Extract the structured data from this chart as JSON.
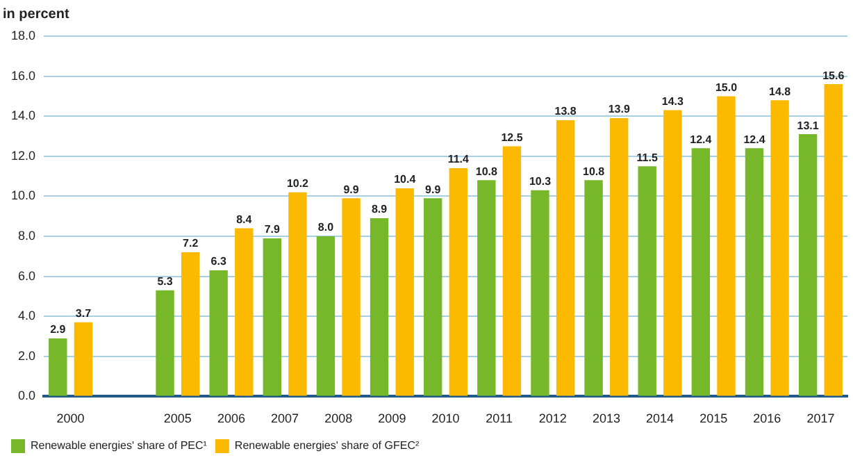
{
  "chart_data": {
    "type": "bar",
    "ylabel": "in percent",
    "categories": [
      "2000",
      null,
      "2005",
      "2006",
      "2007",
      "2008",
      "2009",
      "2010",
      "2011",
      "2012",
      "2013",
      "2014",
      "2015",
      "2016",
      "2017"
    ],
    "series": [
      {
        "name": "Renewable energies' share of PEC¹",
        "color": "#76b82a",
        "values": [
          2.9,
          null,
          5.3,
          6.3,
          7.9,
          8.0,
          8.9,
          9.9,
          10.8,
          10.3,
          10.8,
          11.5,
          12.4,
          12.4,
          13.1
        ],
        "value_labels": [
          "2.9",
          null,
          "5.3",
          "6.3",
          "7.9",
          "8.0",
          "8.9",
          "9.9",
          "10.8",
          "10.3",
          "10.8",
          "11.5",
          "12.4",
          "12.4",
          "13.1"
        ]
      },
      {
        "name": "Renewable energies' share of GFEC²",
        "color": "#fbb900",
        "values": [
          3.7,
          null,
          7.2,
          8.4,
          10.2,
          9.9,
          10.4,
          11.4,
          12.5,
          13.8,
          13.9,
          14.3,
          15.0,
          14.8,
          15.6
        ],
        "value_labels": [
          "3.7",
          null,
          "7.2",
          "8.4",
          "10.2",
          "9.9",
          "10.4",
          "11.4",
          "12.5",
          "13.8",
          "13.9",
          "14.3",
          "15.0",
          "14.8",
          "15.6"
        ]
      }
    ],
    "ylim": [
      0,
      18
    ],
    "yticks": [
      {
        "value": 0,
        "label": "0.0"
      },
      {
        "value": 2,
        "label": "2.0"
      },
      {
        "value": 4,
        "label": "4.0"
      },
      {
        "value": 6,
        "label": "6.0"
      },
      {
        "value": 8,
        "label": "8.0"
      },
      {
        "value": 10,
        "label": "10.0"
      },
      {
        "value": 12,
        "label": "12.0"
      },
      {
        "value": 14,
        "label": "14.0"
      },
      {
        "value": 16,
        "label": "16.0"
      },
      {
        "value": 18,
        "label": "18.0"
      }
    ],
    "grid": "y",
    "legend": "bottom left"
  }
}
